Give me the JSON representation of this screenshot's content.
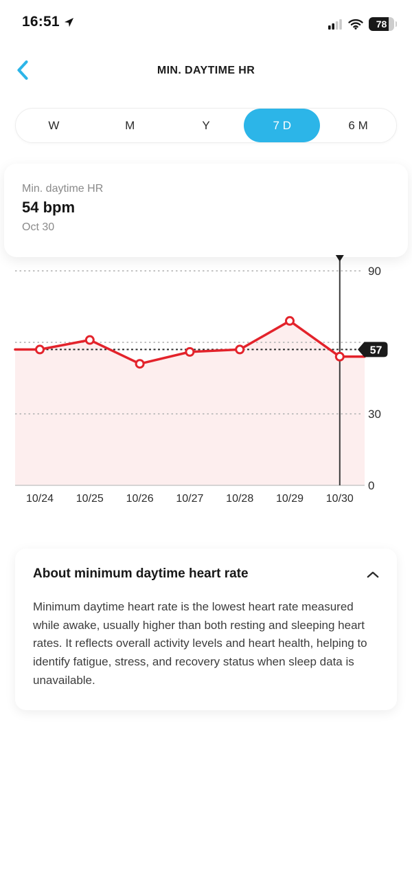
{
  "status_bar": {
    "time": "16:51",
    "location_icon": "navigation-arrow",
    "cellular_icon": "signal-bars-2-of-4",
    "wifi_icon": "wifi",
    "battery_percent": "78"
  },
  "header": {
    "back_icon": "chevron-left",
    "title": "MIN. DAYTIME HR"
  },
  "range_selector": {
    "options": [
      {
        "label": "W",
        "selected": false
      },
      {
        "label": "M",
        "selected": false
      },
      {
        "label": "Y",
        "selected": false
      },
      {
        "label": "7 D",
        "selected": true
      },
      {
        "label": "6 M",
        "selected": false
      }
    ]
  },
  "summary_card": {
    "label": "Min. daytime HR",
    "value": "54 bpm",
    "date": "Oct 30"
  },
  "chart_data": {
    "type": "line",
    "x": [
      "10/24",
      "10/25",
      "10/26",
      "10/27",
      "10/28",
      "10/29",
      "10/30"
    ],
    "series": [
      {
        "name": "Min. daytime HR (bpm)",
        "values": [
          57,
          61,
          51,
          56,
          57,
          69,
          54
        ]
      }
    ],
    "ylim": [
      0,
      90
    ],
    "yticks": [
      0,
      30,
      60,
      90
    ],
    "hidden_ytick_label": 60,
    "reference_line": {
      "value": 57,
      "label": "57"
    },
    "selected_index": 6,
    "selected_x": "10/30",
    "selected_value": 54,
    "grid": "horizontal-dotted",
    "legend": "none",
    "area_fill": true,
    "colors": {
      "line": "#e3232b",
      "fill": "rgba(227,35,43,0.08)",
      "grid": "#b9b9b9",
      "reference": "#2c2c2c",
      "tag_bg": "#1b1b1b",
      "tag_text": "#ffffff",
      "axis_text": "#2d2d2d",
      "selected_line": "#3a3a3a",
      "baseline": "#c9c9c9"
    }
  },
  "about_card": {
    "title": "About minimum daytime heart rate",
    "collapse_icon": "chevron-up",
    "body": "Minimum daytime heart rate is the lowest heart rate measured while awake, usually higher than both resting and sleeping heart rates. It reflects overall activity levels and heart health, helping to identify fatigue, stress, and recovery status when sleep data is unavailable."
  },
  "colors": {
    "accent": "#2cb5e8",
    "chart_red": "#e3232b"
  }
}
